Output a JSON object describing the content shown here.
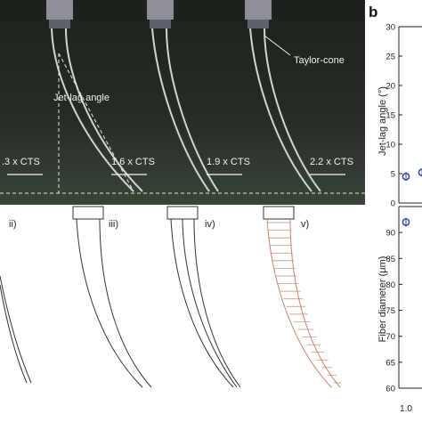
{
  "panel_b_label": "b",
  "photo": {
    "jet_lag_label": "Jet-lag angle",
    "taylor_cone_label": "Taylor-cone",
    "speed_labels": [
      ".3 x CTS",
      "1.6 x CTS",
      "1.9 x CTS",
      "2.2 x CTS"
    ]
  },
  "sketches": {
    "labels": [
      "ii)",
      "iii)",
      "iv)",
      "v)"
    ]
  },
  "colors": {
    "marker": "#3a4a9a",
    "sketch_line": "#333333",
    "hatch": "#c9866a"
  },
  "chart_data": [
    {
      "type": "scatter",
      "ylabel": "Jet-lag angle (°)",
      "ylim": [
        0,
        30
      ],
      "yticks": [
        "0",
        "5",
        "10",
        "15",
        "20",
        "25",
        "30"
      ],
      "x": [
        1.0,
        1.3
      ],
      "y": [
        4.5,
        5.2
      ]
    },
    {
      "type": "scatter",
      "ylabel": "Fiber diameter (μm)",
      "xlabel_visible_tick": "1.0",
      "ylim": [
        60,
        95
      ],
      "yticks": [
        "60",
        "65",
        "70",
        "75",
        "80",
        "85",
        "90"
      ],
      "x": [
        1.0
      ],
      "y": [
        92
      ]
    }
  ]
}
